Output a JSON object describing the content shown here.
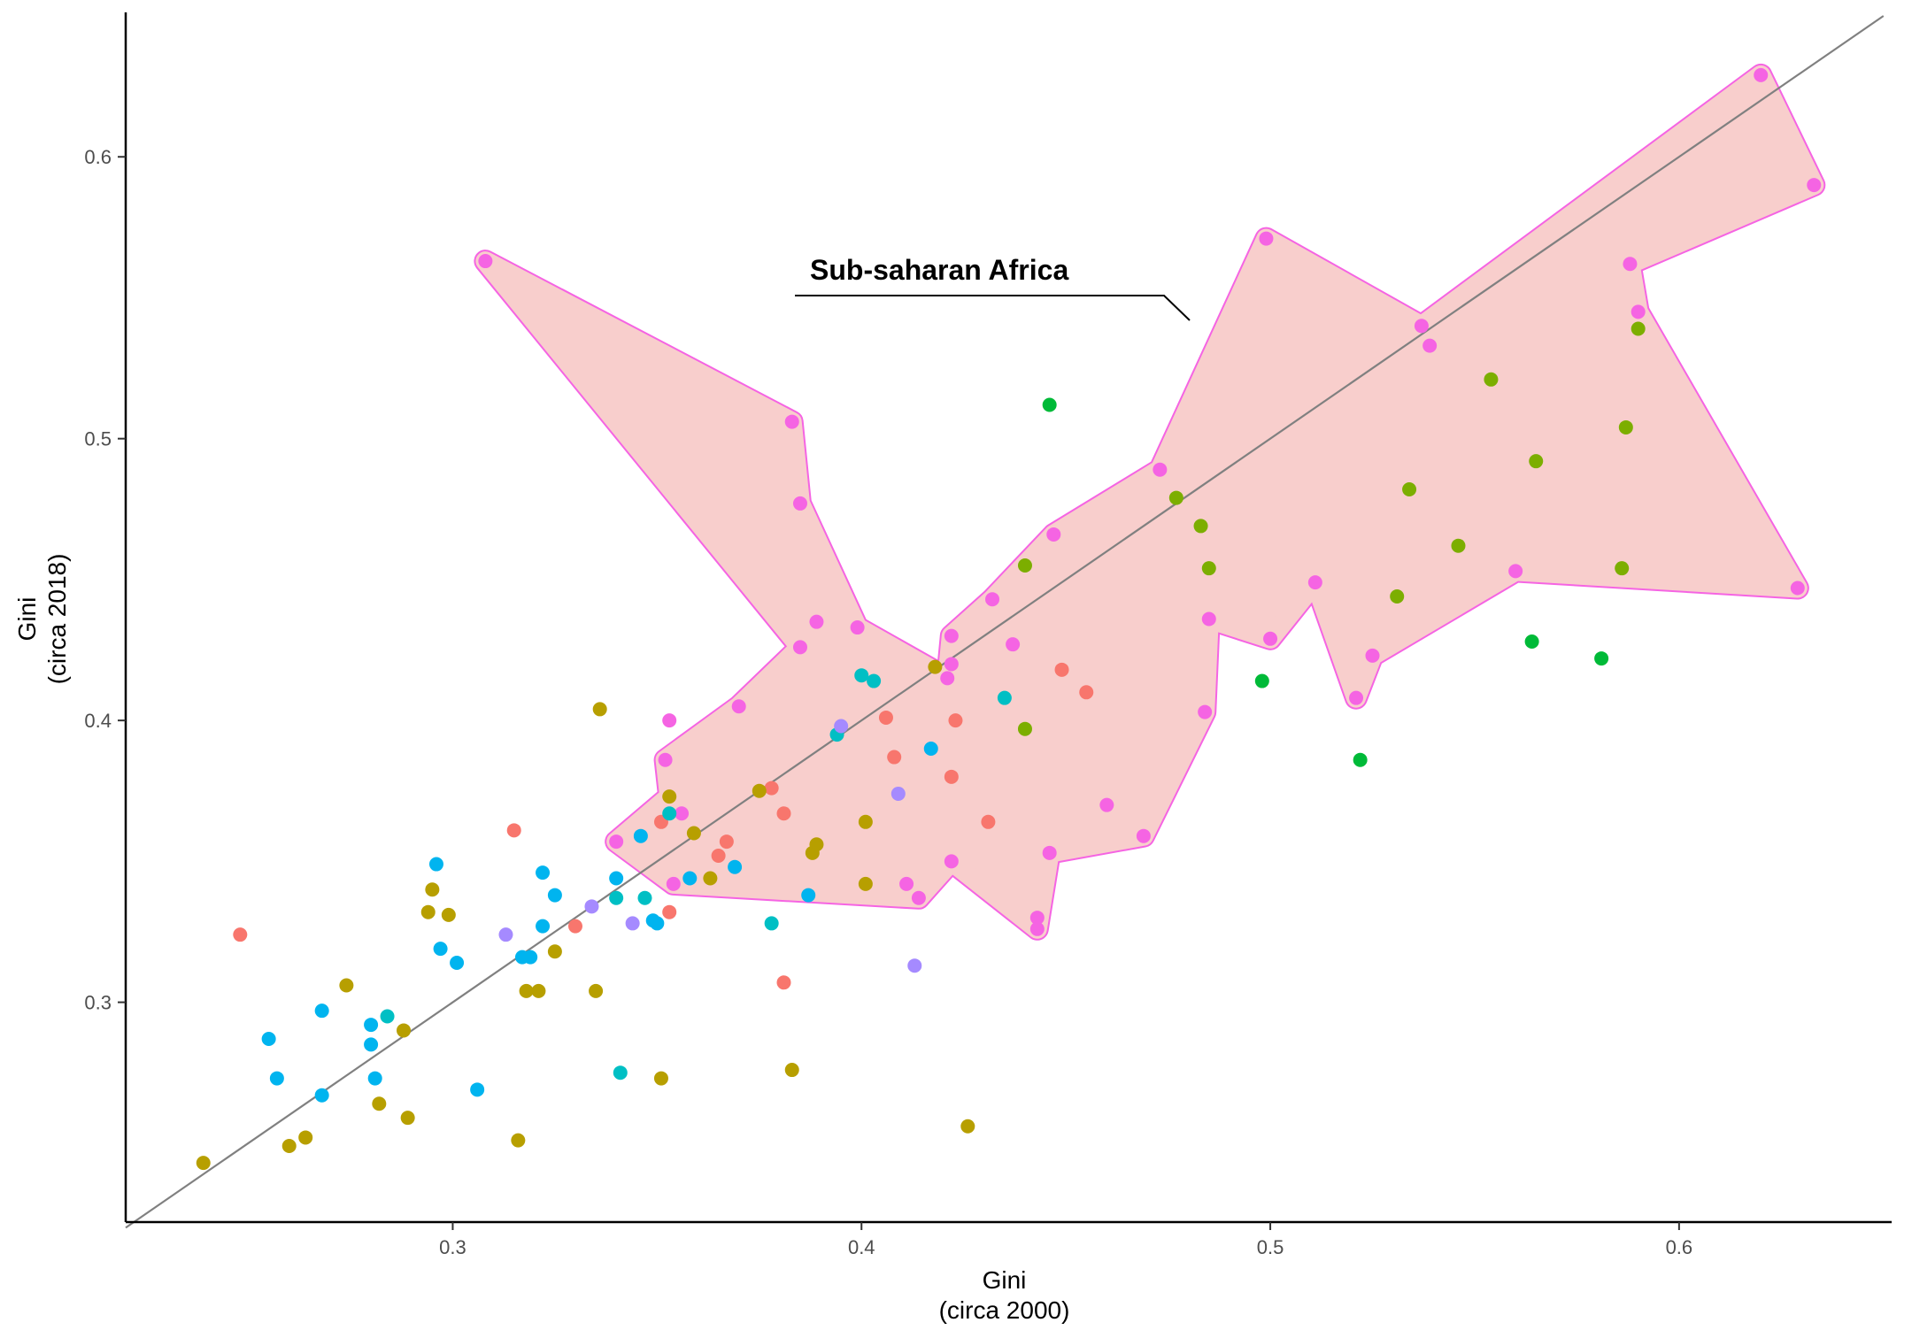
{
  "chart_data": {
    "type": "scatter",
    "xlabel": [
      "Gini",
      "(circa 2000)"
    ],
    "ylabel": [
      "Gini",
      "(circa 2018)"
    ],
    "xlim": [
      0.22,
      0.652
    ],
    "ylim": [
      0.222,
      0.65
    ],
    "x_ticks": [
      0.3,
      0.4,
      0.5,
      0.6
    ],
    "y_ticks": [
      0.3,
      0.4,
      0.5,
      0.6
    ],
    "x_tick_labels": [
      "0.3",
      "0.4",
      "0.5",
      "0.6"
    ],
    "y_tick_labels": [
      "0.3",
      "0.4",
      "0.5",
      "0.6"
    ],
    "grid": false,
    "reference_line": "y = x",
    "annotation": {
      "text": "Sub-saharan Africa",
      "highlighted_group": "Sub-saharan Africa"
    },
    "colors": {
      "pink": "#F564E3",
      "red": "#F8766D",
      "gold": "#B79F00",
      "olive": "#7CAE00",
      "green": "#00BA38",
      "teal": "#00BFC4",
      "blue": "#00B4EF",
      "violet": "#A58AFF",
      "hull_fill": "#F8CECC",
      "hull_stroke": "#F564E3",
      "ref_line": "#808080"
    },
    "series": [
      {
        "color": "#F564E3",
        "points": [
          [
            0.308,
            0.563
          ],
          [
            0.383,
            0.506
          ],
          [
            0.385,
            0.477
          ],
          [
            0.385,
            0.426
          ],
          [
            0.389,
            0.435
          ],
          [
            0.399,
            0.433
          ],
          [
            0.37,
            0.405
          ],
          [
            0.353,
            0.4
          ],
          [
            0.352,
            0.386
          ],
          [
            0.356,
            0.367
          ],
          [
            0.34,
            0.357
          ],
          [
            0.354,
            0.342
          ],
          [
            0.421,
            0.415
          ],
          [
            0.422,
            0.42
          ],
          [
            0.422,
            0.43
          ],
          [
            0.432,
            0.443
          ],
          [
            0.437,
            0.427
          ],
          [
            0.447,
            0.466
          ],
          [
            0.473,
            0.489
          ],
          [
            0.499,
            0.571
          ],
          [
            0.485,
            0.436
          ],
          [
            0.484,
            0.403
          ],
          [
            0.5,
            0.429
          ],
          [
            0.511,
            0.449
          ],
          [
            0.521,
            0.408
          ],
          [
            0.525,
            0.423
          ],
          [
            0.537,
            0.54
          ],
          [
            0.539,
            0.533
          ],
          [
            0.56,
            0.453
          ],
          [
            0.588,
            0.562
          ],
          [
            0.59,
            0.545
          ],
          [
            0.62,
            0.629
          ],
          [
            0.633,
            0.59
          ],
          [
            0.629,
            0.447
          ],
          [
            0.46,
            0.37
          ],
          [
            0.469,
            0.359
          ],
          [
            0.446,
            0.353
          ],
          [
            0.443,
            0.33
          ],
          [
            0.443,
            0.326
          ],
          [
            0.422,
            0.35
          ],
          [
            0.414,
            0.337
          ],
          [
            0.411,
            0.342
          ]
        ]
      },
      {
        "color": "#F8766D",
        "points": [
          [
            0.248,
            0.324
          ],
          [
            0.315,
            0.361
          ],
          [
            0.33,
            0.327
          ],
          [
            0.353,
            0.332
          ],
          [
            0.351,
            0.364
          ],
          [
            0.367,
            0.357
          ],
          [
            0.365,
            0.352
          ],
          [
            0.378,
            0.376
          ],
          [
            0.381,
            0.367
          ],
          [
            0.381,
            0.307
          ],
          [
            0.406,
            0.401
          ],
          [
            0.408,
            0.387
          ],
          [
            0.423,
            0.4
          ],
          [
            0.422,
            0.38
          ],
          [
            0.431,
            0.364
          ],
          [
            0.449,
            0.418
          ],
          [
            0.455,
            0.41
          ]
        ]
      },
      {
        "color": "#B79F00",
        "points": [
          [
            0.239,
            0.243
          ],
          [
            0.26,
            0.249
          ],
          [
            0.264,
            0.252
          ],
          [
            0.274,
            0.306
          ],
          [
            0.282,
            0.264
          ],
          [
            0.288,
            0.29
          ],
          [
            0.289,
            0.259
          ],
          [
            0.294,
            0.332
          ],
          [
            0.295,
            0.34
          ],
          [
            0.299,
            0.331
          ],
          [
            0.316,
            0.251
          ],
          [
            0.318,
            0.304
          ],
          [
            0.321,
            0.304
          ],
          [
            0.325,
            0.318
          ],
          [
            0.335,
            0.304
          ],
          [
            0.336,
            0.404
          ],
          [
            0.351,
            0.273
          ],
          [
            0.353,
            0.373
          ],
          [
            0.359,
            0.36
          ],
          [
            0.363,
            0.344
          ],
          [
            0.375,
            0.375
          ],
          [
            0.383,
            0.276
          ],
          [
            0.388,
            0.353
          ],
          [
            0.389,
            0.356
          ],
          [
            0.401,
            0.364
          ],
          [
            0.401,
            0.342
          ],
          [
            0.418,
            0.419
          ],
          [
            0.426,
            0.256
          ]
        ]
      },
      {
        "color": "#7CAE00",
        "points": [
          [
            0.44,
            0.455
          ],
          [
            0.44,
            0.397
          ],
          [
            0.477,
            0.479
          ],
          [
            0.483,
            0.469
          ],
          [
            0.485,
            0.454
          ],
          [
            0.531,
            0.444
          ],
          [
            0.534,
            0.482
          ],
          [
            0.546,
            0.462
          ],
          [
            0.554,
            0.521
          ],
          [
            0.565,
            0.492
          ],
          [
            0.586,
            0.454
          ],
          [
            0.587,
            0.504
          ],
          [
            0.59,
            0.539
          ]
        ]
      },
      {
        "color": "#00BA38",
        "points": [
          [
            0.446,
            0.512
          ],
          [
            0.498,
            0.414
          ],
          [
            0.522,
            0.386
          ],
          [
            0.564,
            0.428
          ],
          [
            0.581,
            0.422
          ]
        ]
      },
      {
        "color": "#00BFC4",
        "points": [
          [
            0.284,
            0.295
          ],
          [
            0.34,
            0.337
          ],
          [
            0.341,
            0.275
          ],
          [
            0.347,
            0.337
          ],
          [
            0.353,
            0.367
          ],
          [
            0.378,
            0.328
          ],
          [
            0.394,
            0.395
          ],
          [
            0.4,
            0.416
          ],
          [
            0.403,
            0.414
          ],
          [
            0.435,
            0.408
          ]
        ]
      },
      {
        "color": "#00B4EF",
        "points": [
          [
            0.255,
            0.287
          ],
          [
            0.257,
            0.273
          ],
          [
            0.268,
            0.297
          ],
          [
            0.268,
            0.267
          ],
          [
            0.28,
            0.292
          ],
          [
            0.28,
            0.285
          ],
          [
            0.281,
            0.273
          ],
          [
            0.296,
            0.349
          ],
          [
            0.297,
            0.319
          ],
          [
            0.301,
            0.314
          ],
          [
            0.306,
            0.269
          ],
          [
            0.317,
            0.316
          ],
          [
            0.319,
            0.316
          ],
          [
            0.322,
            0.346
          ],
          [
            0.322,
            0.327
          ],
          [
            0.325,
            0.338
          ],
          [
            0.34,
            0.344
          ],
          [
            0.346,
            0.359
          ],
          [
            0.349,
            0.329
          ],
          [
            0.35,
            0.328
          ],
          [
            0.358,
            0.344
          ],
          [
            0.369,
            0.348
          ],
          [
            0.387,
            0.338
          ],
          [
            0.417,
            0.39
          ]
        ]
      },
      {
        "color": "#A58AFF",
        "points": [
          [
            0.313,
            0.324
          ],
          [
            0.334,
            0.334
          ],
          [
            0.344,
            0.328
          ],
          [
            0.395,
            0.398
          ],
          [
            0.409,
            0.374
          ],
          [
            0.413,
            0.313
          ]
        ]
      }
    ]
  }
}
